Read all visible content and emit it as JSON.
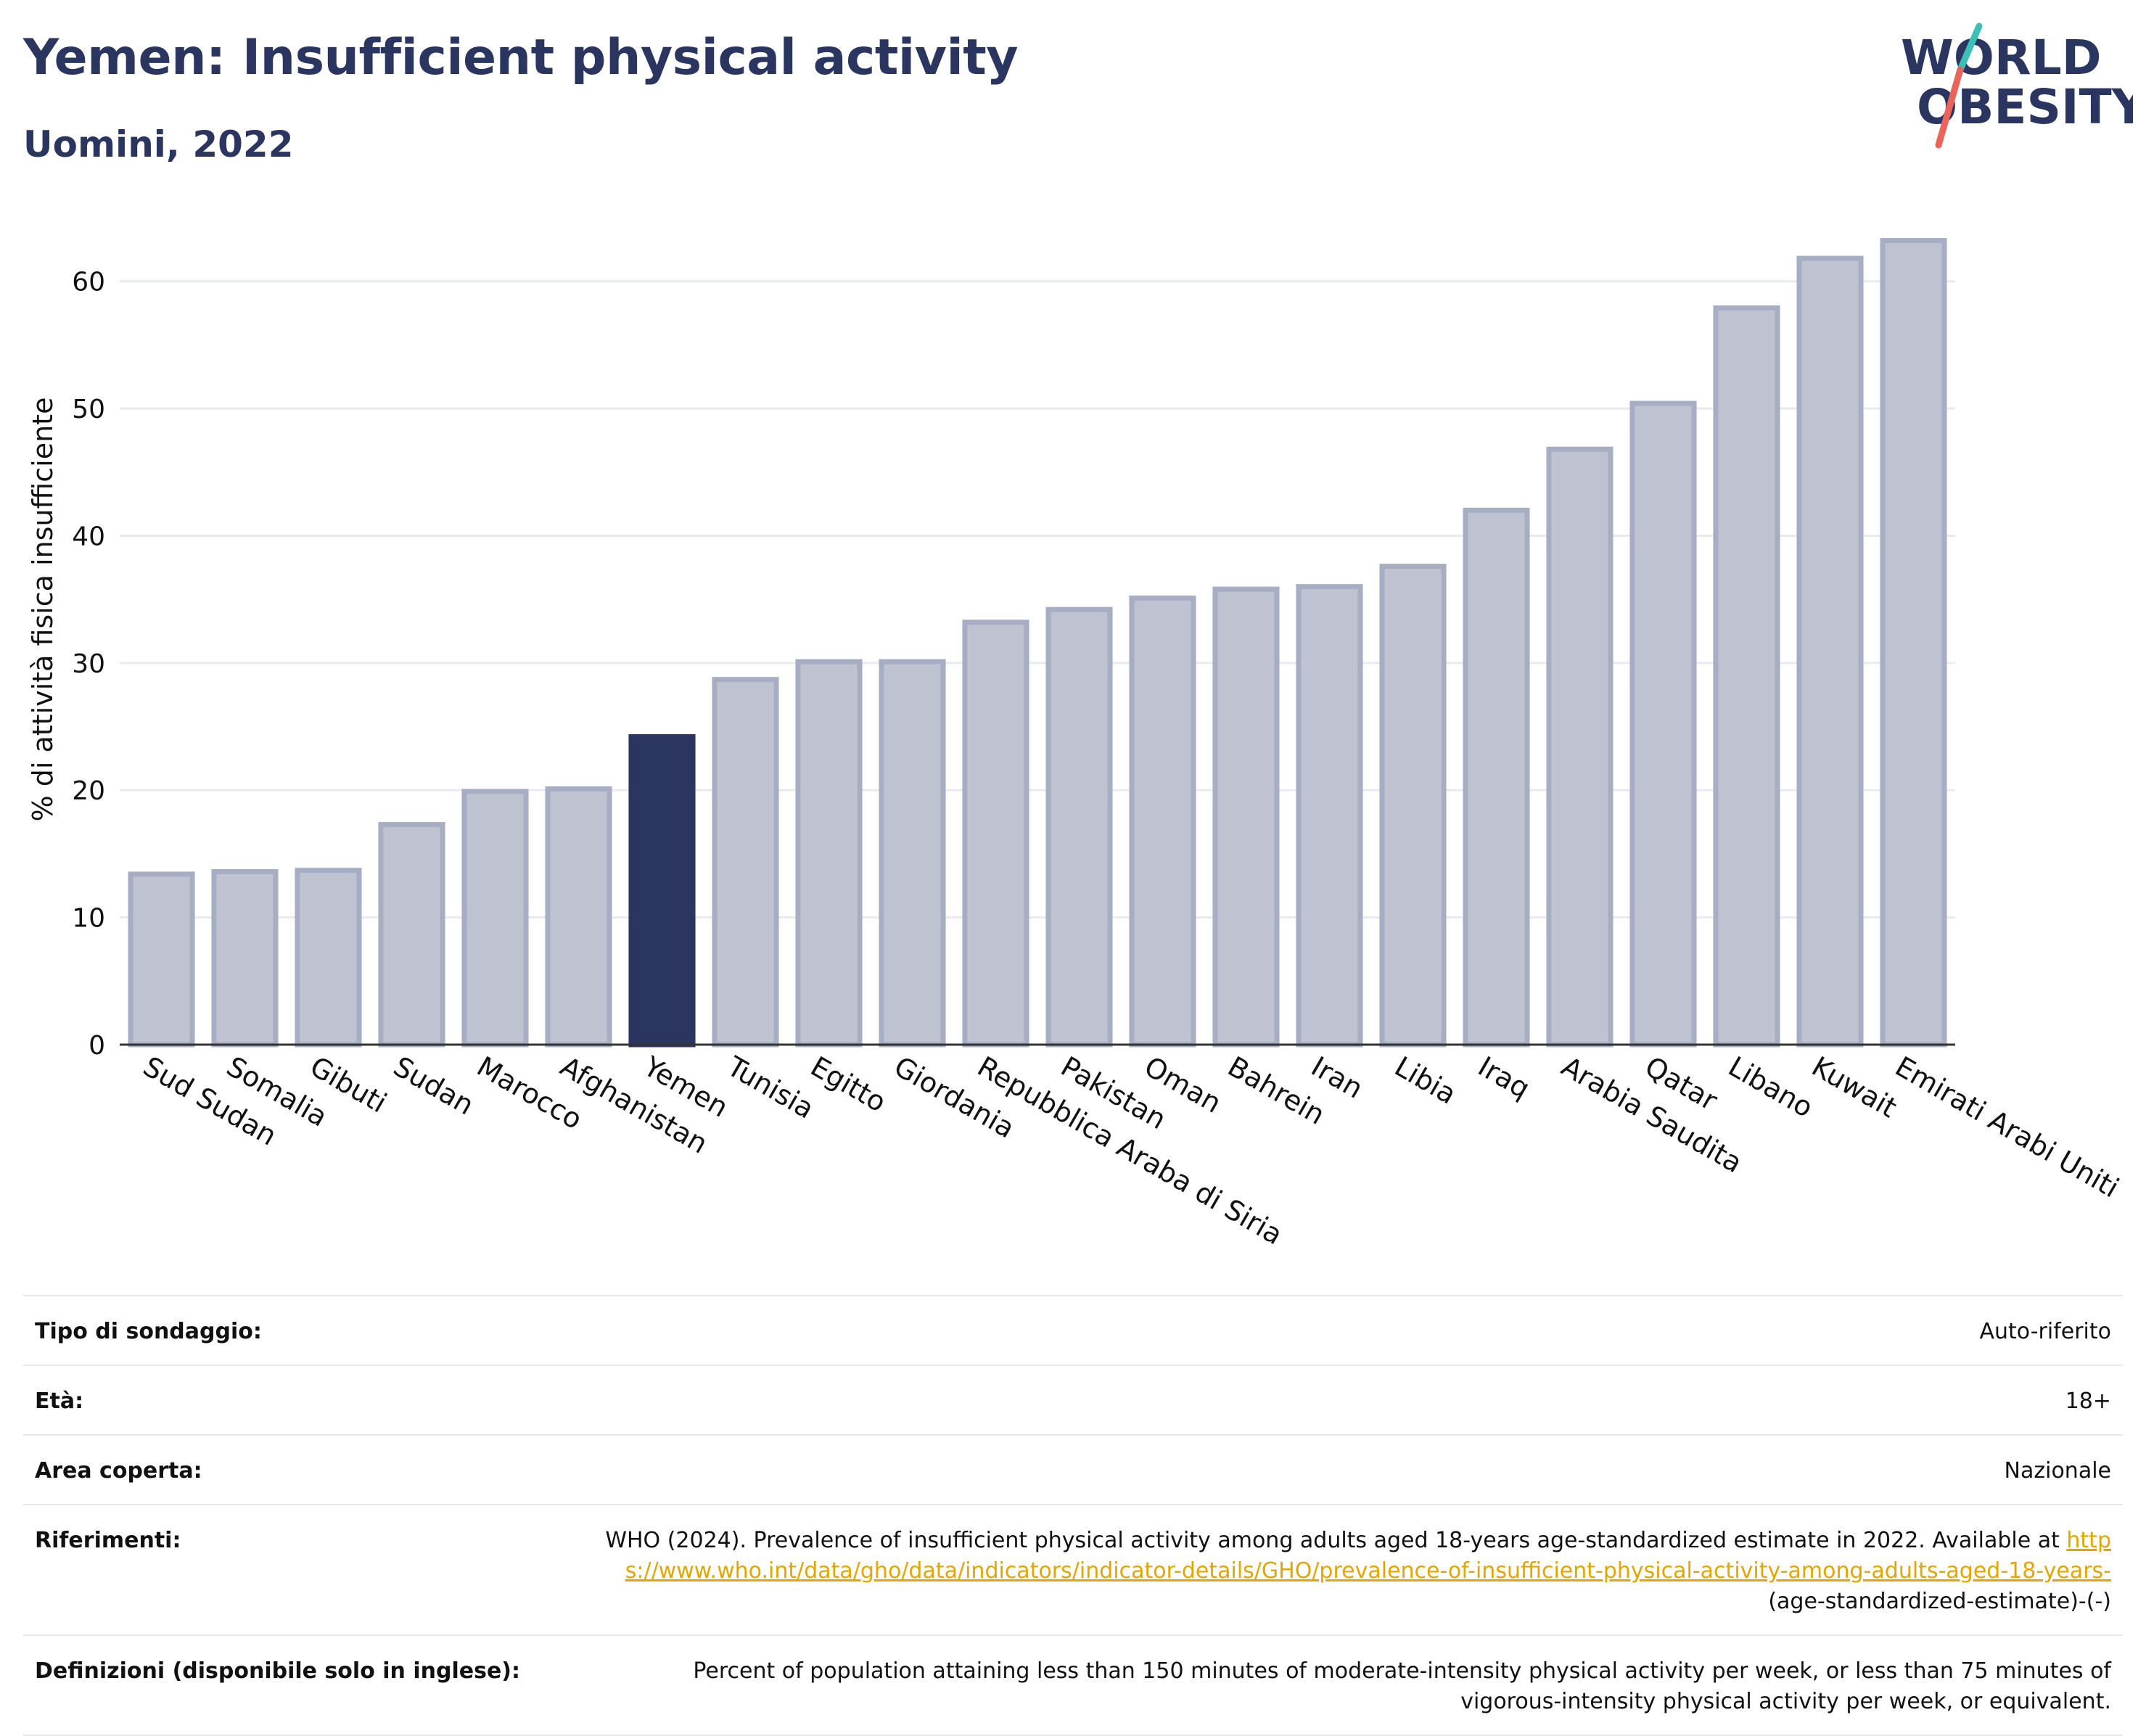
{
  "header": {
    "title": "Yemen: Insufficient physical activity",
    "subtitle": "Uomini, 2022"
  },
  "logo": {
    "line1": "WORLD",
    "line2": "OBESITY",
    "slash_colors": [
      "#3bbfb7",
      "#e9645a"
    ]
  },
  "colors": {
    "bar": "#bfc3d1",
    "bar_stroke": "#a7adc3",
    "highlight": "#2a3560",
    "title": "#2a3560",
    "link": "#e2a600"
  },
  "chart_data": {
    "type": "bar",
    "ylabel": "% di attività fisica insufficiente",
    "xlabel": "",
    "ylim": [
      0,
      65
    ],
    "yticks": [
      0,
      10,
      20,
      30,
      40,
      50,
      60
    ],
    "grid": true,
    "highlight": "Yemen",
    "categories": [
      "Sud Sudan",
      "Somalia",
      "Gibuti",
      "Sudan",
      "Marocco",
      "Afghanistan",
      "Yemen",
      "Tunisia",
      "Egitto",
      "Giordania",
      "Repubblica Araba di Siria",
      "Pakistan",
      "Oman",
      "Bahrein",
      "Iran",
      "Libia",
      "Iraq",
      "Arabia Saudita",
      "Qatar",
      "Libano",
      "Kuwait",
      "Emirati Arabi Uniti"
    ],
    "values": [
      13.4,
      13.6,
      13.7,
      17.3,
      19.9,
      20.1,
      24.2,
      28.7,
      30.1,
      30.1,
      33.2,
      34.2,
      35.1,
      35.8,
      36.0,
      37.6,
      42.0,
      46.8,
      50.4,
      57.9,
      61.8,
      63.2
    ]
  },
  "info": {
    "rows": [
      {
        "label": "Tipo di sondaggio:",
        "value": "Auto-riferito"
      },
      {
        "label": "Età:",
        "value": "18+"
      },
      {
        "label": "Area coperta:",
        "value": "Nazionale"
      }
    ],
    "references": {
      "label": "Riferimenti:",
      "text": "WHO (2024). Prevalence of insufficient physical activity among adults aged 18-years age-standardized estimate in 2022. Available at",
      "link": "https://www.who.int/data/gho/data/indicators/indicator-details/GHO/prevalence-of-insufficient-physical-activity-among-adults-aged-18-years-",
      "suffix": "(age-standardized-estimate)-(-)"
    },
    "definitions": {
      "label": "Definizioni (disponibile solo in inglese):",
      "value": "Percent of population attaining less than 150 minutes of moderate-intensity physical activity per week, or less than 75 minutes of vigorous-intensity physical activity per week, or equivalent."
    }
  }
}
